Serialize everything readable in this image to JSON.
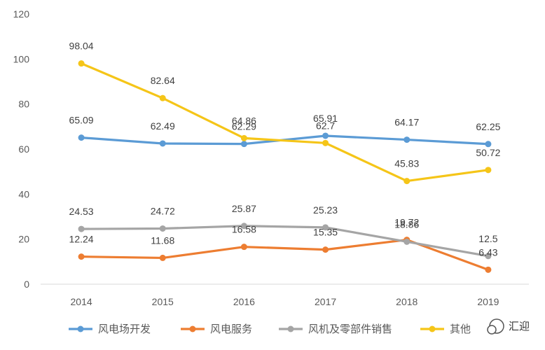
{
  "chart_data": {
    "type": "line",
    "categories": [
      "2014",
      "2015",
      "2016",
      "2017",
      "2018",
      "2019"
    ],
    "ylim": [
      0,
      120
    ],
    "yticks": [
      0,
      20,
      40,
      60,
      80,
      100,
      120
    ],
    "grid": false,
    "legend_position": "bottom",
    "series": [
      {
        "name": "风电场开发",
        "color": "#5B9BD5",
        "values": [
          65.09,
          62.49,
          62.29,
          65.91,
          64.17,
          62.25
        ],
        "labels": [
          "65.09",
          "62.49",
          "62.29",
          "65.91",
          "64.17",
          "62.25"
        ]
      },
      {
        "name": "风电服务",
        "color": "#ED7D31",
        "values": [
          12.24,
          11.68,
          16.58,
          15.35,
          19.72,
          6.43
        ],
        "labels": [
          "12.24",
          "11.68",
          "16.58",
          "15.35",
          "19.72",
          "6.43"
        ]
      },
      {
        "name": "风机及零部件销售",
        "color": "#A5A5A5",
        "values": [
          24.53,
          24.72,
          25.87,
          25.23,
          18.86,
          12.5
        ],
        "labels": [
          "24.53",
          "24.72",
          "25.87",
          "25.23",
          "18.86",
          "12.5"
        ]
      },
      {
        "name": "其他",
        "color": "#F5C518",
        "values": [
          98.04,
          82.64,
          64.86,
          62.7,
          45.83,
          50.72
        ],
        "labels": [
          "98.04",
          "82.64",
          "64.86",
          "62.7",
          "45.83",
          "50.72"
        ]
      }
    ]
  },
  "watermark": {
    "text": "汇迎"
  }
}
